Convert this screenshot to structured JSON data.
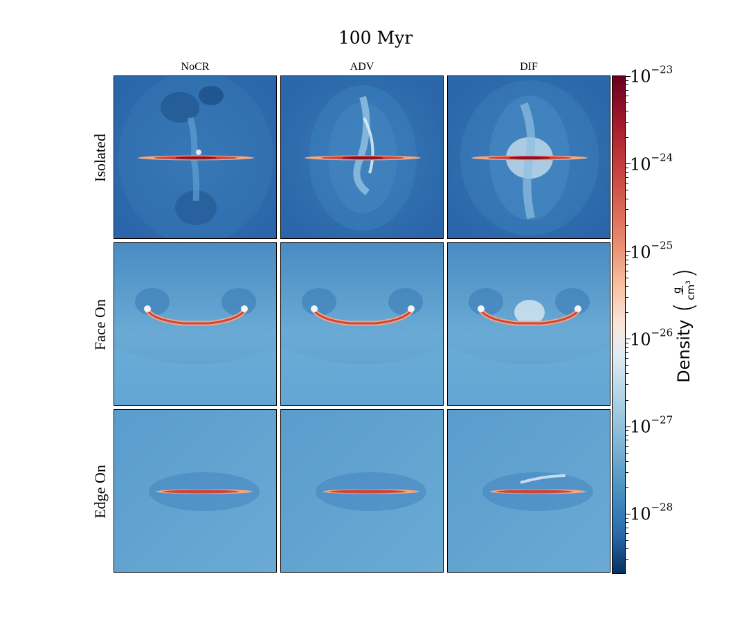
{
  "figure": {
    "title": "100 Myr",
    "columns": [
      "NoCR",
      "ADV",
      "DIF"
    ],
    "rows": [
      "Isolated",
      "Face On",
      "Edge On"
    ]
  },
  "colorbar": {
    "label": "Density",
    "units_numerator": "g",
    "units_denominator": "cm",
    "units_denominator_power": "3",
    "colormap": "RdBu_r",
    "scale": "log",
    "ticks": [
      {
        "base": "10",
        "exp": "−23"
      },
      {
        "base": "10",
        "exp": "−24"
      },
      {
        "base": "10",
        "exp": "−25"
      },
      {
        "base": "10",
        "exp": "−26"
      },
      {
        "base": "10",
        "exp": "−27"
      },
      {
        "base": "10",
        "exp": "−28"
      }
    ]
  },
  "colors": {
    "isolated_bg": "#2c6aad",
    "faceon_bg": "#4f92c6",
    "edgeon_bg": "#5199ca",
    "disk_core": "#b2182b",
    "disk_edge": "#f4a582",
    "outflow": "#e8f1f8"
  }
}
